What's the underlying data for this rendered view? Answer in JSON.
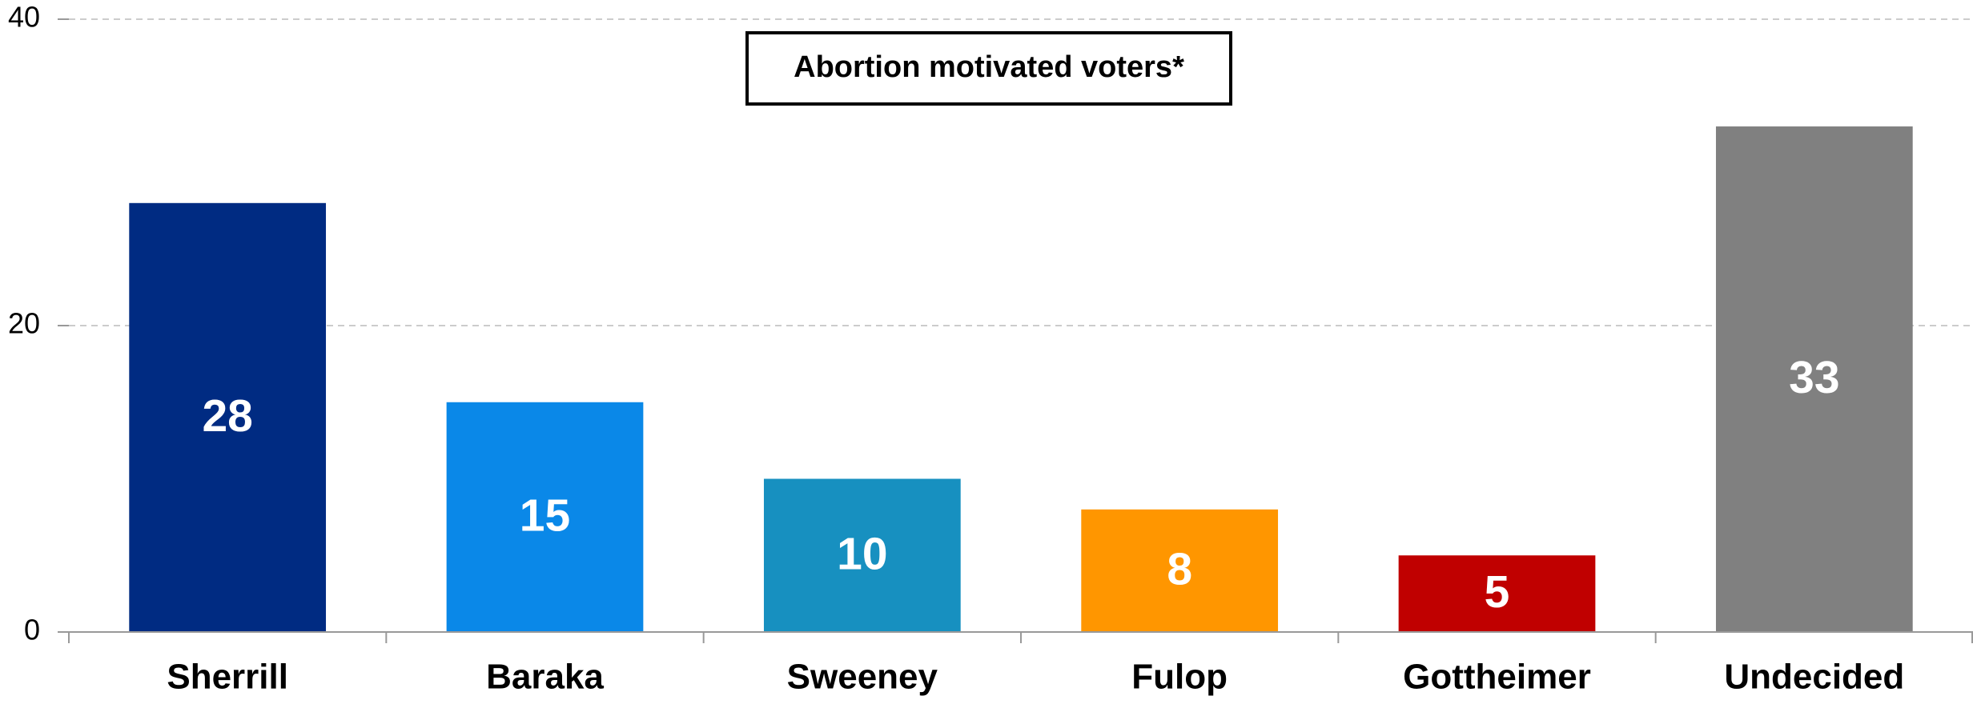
{
  "chart_data": {
    "type": "bar",
    "title": "Abortion motivated voters*",
    "categories": [
      "Sherrill",
      "Baraka",
      "Sweeney",
      "Fulop",
      "Gottheimer",
      "Undecided"
    ],
    "values": [
      28,
      15,
      10,
      8,
      5,
      33
    ],
    "colors": [
      "#002b82",
      "#0a88e8",
      "#1790c0",
      "#ff9600",
      "#c00000",
      "#808080"
    ],
    "ylim": [
      0,
      40
    ],
    "yticks": [
      0,
      20,
      40
    ],
    "grid": true
  }
}
